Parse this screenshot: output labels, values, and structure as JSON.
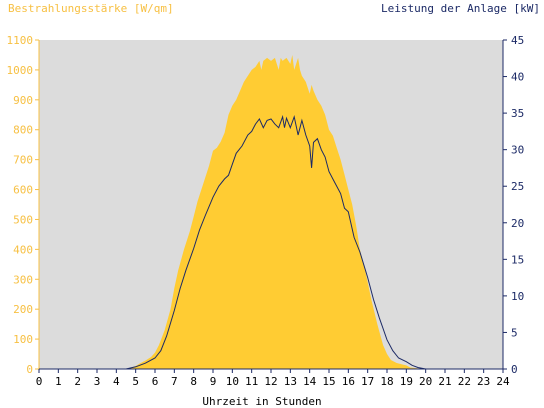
{
  "chart_data": {
    "type": "area",
    "title_left": "Bestrahlungsstärke [W/qm]",
    "title_right": "Leistung der Anlage [kW]",
    "xlabel": "Uhrzeit in Stunden",
    "x_ticks": [
      0,
      1,
      2,
      3,
      4,
      5,
      6,
      7,
      8,
      9,
      10,
      11,
      12,
      13,
      14,
      15,
      16,
      17,
      18,
      19,
      20,
      21,
      22,
      23,
      24
    ],
    "xlim": [
      0,
      24
    ],
    "y_left": {
      "label": "Bestrahlungsstärke [W/qm]",
      "ticks": [
        0,
        100,
        200,
        300,
        400,
        500,
        600,
        700,
        800,
        900,
        1000,
        1100
      ],
      "lim": [
        0,
        1100
      ]
    },
    "y_right": {
      "label": "Leistung der Anlage [kW]",
      "ticks": [
        0,
        5,
        10,
        15,
        20,
        25,
        30,
        35,
        40,
        45
      ],
      "lim": [
        0,
        45
      ]
    },
    "grid": false,
    "colors": {
      "irradiance": "#ffcc33",
      "power": "#1c2a66",
      "plot_bg": "#dcdcdc",
      "left_axis": "#f7c043",
      "right_axis": "#1c2a66"
    },
    "series": [
      {
        "name": "Bestrahlungsstärke [W/qm]",
        "axis": "left",
        "style": "area",
        "x": [
          0,
          4.5,
          4.7,
          5,
          5.2,
          5.5,
          5.8,
          6.0,
          6.2,
          6.5,
          6.8,
          7.0,
          7.2,
          7.5,
          7.8,
          8.0,
          8.2,
          8.5,
          8.8,
          9.0,
          9.2,
          9.4,
          9.6,
          9.8,
          10.0,
          10.2,
          10.4,
          10.6,
          10.8,
          11.0,
          11.2,
          11.4,
          11.5,
          11.6,
          11.8,
          12.0,
          12.2,
          12.4,
          12.5,
          12.6,
          12.8,
          13.0,
          13.1,
          13.2,
          13.4,
          13.5,
          13.6,
          13.8,
          14.0,
          14.1,
          14.2,
          14.4,
          14.6,
          14.8,
          15.0,
          15.2,
          15.4,
          15.6,
          15.8,
          16.0,
          16.2,
          16.4,
          16.6,
          16.8,
          17.0,
          17.2,
          17.5,
          17.8,
          18.0,
          18.2,
          18.5,
          18.8,
          19.0,
          19.2,
          19.5,
          19.8,
          20.0,
          20.3,
          20.6,
          24
        ],
        "y": [
          0,
          0,
          3,
          10,
          18,
          28,
          40,
          55,
          80,
          130,
          200,
          270,
          330,
          400,
          460,
          510,
          560,
          620,
          680,
          730,
          740,
          760,
          790,
          850,
          880,
          900,
          930,
          960,
          980,
          1000,
          1010,
          1030,
          1000,
          1030,
          1040,
          1030,
          1040,
          1000,
          1040,
          1030,
          1040,
          1020,
          1050,
          1000,
          1040,
          1000,
          980,
          960,
          920,
          950,
          930,
          900,
          880,
          850,
          800,
          780,
          740,
          700,
          650,
          600,
          550,
          480,
          400,
          350,
          290,
          230,
          150,
          80,
          50,
          30,
          20,
          15,
          12,
          5,
          3,
          1,
          0,
          0,
          0,
          0
        ]
      },
      {
        "name": "Leistung der Anlage [kW]",
        "axis": "right",
        "style": "line",
        "x": [
          0,
          4.5,
          5.0,
          5.5,
          6.0,
          6.3,
          6.6,
          7.0,
          7.3,
          7.6,
          8.0,
          8.3,
          8.6,
          9.0,
          9.3,
          9.6,
          9.8,
          10.0,
          10.2,
          10.5,
          10.8,
          11.0,
          11.2,
          11.4,
          11.6,
          11.8,
          12.0,
          12.2,
          12.4,
          12.6,
          12.7,
          12.8,
          13.0,
          13.2,
          13.4,
          13.6,
          13.8,
          14.0,
          14.1,
          14.2,
          14.4,
          14.6,
          14.8,
          15.0,
          15.3,
          15.6,
          15.8,
          16.0,
          16.3,
          16.6,
          17.0,
          17.3,
          17.6,
          18.0,
          18.3,
          18.6,
          19.0,
          19.3,
          19.6,
          20.0,
          20.5,
          24
        ],
        "y": [
          0,
          0,
          0.3,
          0.8,
          1.5,
          2.5,
          4.5,
          8,
          11,
          13.5,
          16.5,
          19,
          21,
          23.5,
          25,
          26,
          26.5,
          28,
          29.5,
          30.5,
          32,
          32.5,
          33.5,
          34.2,
          33,
          34,
          34.2,
          33.5,
          33,
          34.5,
          33,
          34.3,
          33,
          34.5,
          32,
          34,
          32,
          30.5,
          27.5,
          31,
          31.5,
          30,
          29,
          27,
          25.5,
          24,
          22,
          21.5,
          18,
          16,
          12.5,
          9.5,
          7,
          4,
          2.5,
          1.5,
          1,
          0.5,
          0.2,
          0,
          0,
          0
        ]
      }
    ]
  }
}
